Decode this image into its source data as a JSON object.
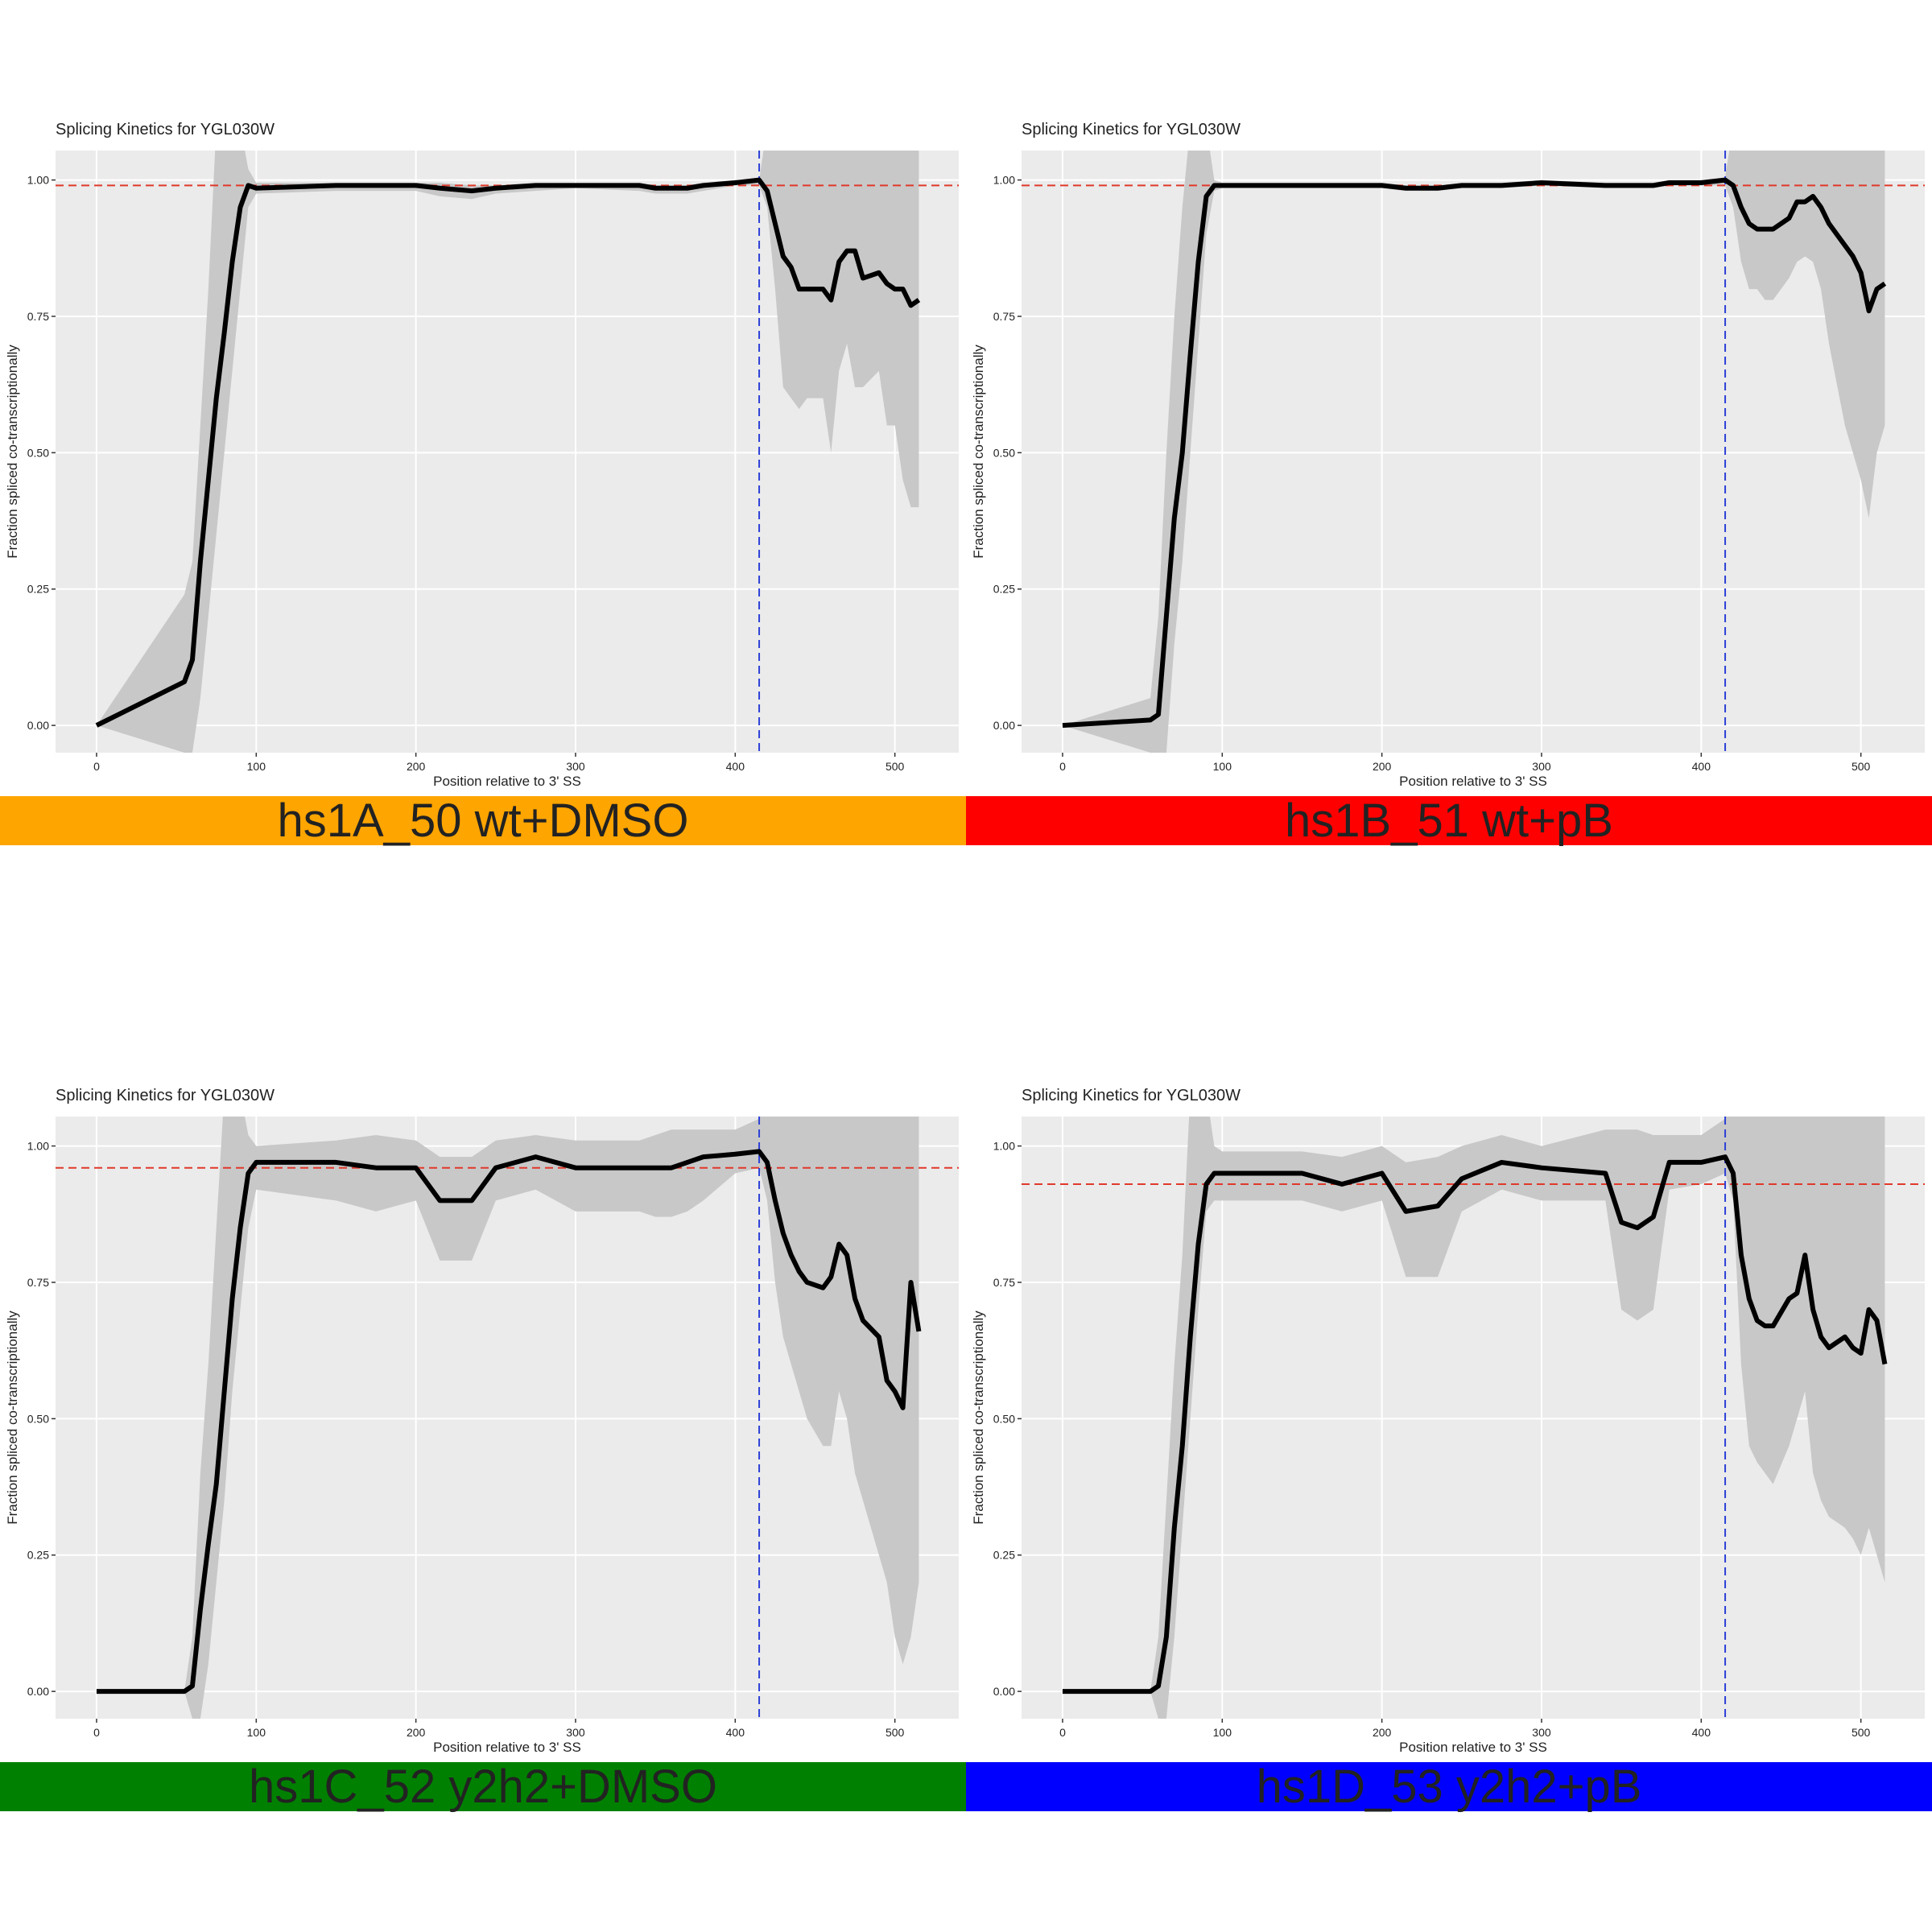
{
  "chart_data": [
    {
      "type": "line",
      "title": "Splicing Kinetics for YGL030W",
      "xlabel": "Position relative to 3' SS",
      "ylabel": "Fraction spliced co-transcriptionally",
      "banner": {
        "text": "hs1A_50 wt+DMSO",
        "color": "#ffa500"
      },
      "x": [
        0,
        55,
        60,
        65,
        70,
        75,
        80,
        85,
        90,
        95,
        100,
        150,
        175,
        200,
        215,
        235,
        250,
        275,
        300,
        340,
        350,
        360,
        370,
        380,
        400,
        415,
        420,
        425,
        430,
        435,
        440,
        445,
        455,
        460,
        465,
        470,
        475,
        480,
        490,
        495,
        500,
        505,
        510,
        515
      ],
      "series": [
        {
          "color": "#000000",
          "band_color": "#c8c8c8",
          "values": [
            0,
            0.08,
            0.12,
            0.3,
            0.45,
            0.6,
            0.72,
            0.85,
            0.95,
            0.99,
            0.985,
            0.99,
            0.99,
            0.99,
            0.985,
            0.98,
            0.985,
            0.99,
            0.99,
            0.99,
            0.985,
            0.985,
            0.985,
            0.99,
            0.995,
            1.0,
            0.98,
            0.92,
            0.86,
            0.84,
            0.8,
            0.8,
            0.8,
            0.78,
            0.85,
            0.87,
            0.87,
            0.82,
            0.83,
            0.81,
            0.8,
            0.8,
            0.77,
            0.78
          ],
          "lower": [
            0,
            -0.05,
            -0.05,
            0.05,
            0.2,
            0.35,
            0.5,
            0.65,
            0.8,
            0.95,
            0.975,
            0.98,
            0.98,
            0.98,
            0.97,
            0.965,
            0.975,
            0.98,
            0.985,
            0.98,
            0.975,
            0.975,
            0.975,
            0.98,
            0.99,
            0.99,
            0.95,
            0.8,
            0.62,
            0.6,
            0.58,
            0.6,
            0.6,
            0.5,
            0.65,
            0.7,
            0.62,
            0.62,
            0.65,
            0.55,
            0.55,
            0.45,
            0.4,
            0.4
          ],
          "upper": [
            0,
            0.24,
            0.3,
            0.55,
            0.8,
            1.1,
            1.1,
            1.1,
            1.1,
            1.02,
            0.995,
            0.995,
            0.995,
            0.995,
            0.995,
            0.99,
            0.99,
            0.995,
            0.995,
            0.995,
            0.99,
            0.99,
            0.99,
            0.995,
            1.0,
            1.0,
            1.1,
            1.1,
            1.1,
            1.1,
            1.1,
            1.1,
            1.1,
            1.1,
            1.1,
            1.1,
            1.1,
            1.1,
            1.1,
            1.1,
            1.1,
            1.1,
            1.1,
            1.1
          ]
        }
      ],
      "hline": 0.99,
      "hline_color": "#e0392b",
      "vline": 415,
      "vline_color": "#2b3fd6",
      "xlim": [
        -25.7,
        540
      ],
      "ylim": [
        -0.05,
        1.054
      ],
      "xticks": [
        0,
        100,
        200,
        300,
        400,
        500
      ],
      "yticks": [
        {
          "value": 0,
          "label": "0.00"
        },
        0.25,
        {
          "value": 0.5,
          "label": "0.50"
        },
        0.75,
        {
          "value": 1,
          "label": "1.00"
        }
      ],
      "grid": true
    },
    {
      "type": "line",
      "title": "Splicing Kinetics for YGL030W",
      "xlabel": "Position relative to 3' SS",
      "ylabel": "Fraction spliced co-transcriptionally",
      "banner": {
        "text": "hs1B_51 wt+pB",
        "color": "#ff0000"
      },
      "x": [
        0,
        55,
        60,
        65,
        70,
        75,
        80,
        85,
        90,
        95,
        100,
        150,
        175,
        200,
        215,
        235,
        250,
        275,
        300,
        340,
        350,
        360,
        370,
        380,
        400,
        415,
        420,
        425,
        430,
        435,
        440,
        445,
        455,
        460,
        465,
        470,
        475,
        480,
        490,
        495,
        500,
        505,
        510,
        515
      ],
      "series": [
        {
          "color": "#000000",
          "band_color": "#c8c8c8",
          "values": [
            0,
            0.01,
            0.02,
            0.2,
            0.38,
            0.5,
            0.68,
            0.85,
            0.97,
            0.99,
            0.99,
            0.99,
            0.99,
            0.99,
            0.985,
            0.985,
            0.99,
            0.99,
            0.995,
            0.99,
            0.99,
            0.99,
            0.99,
            0.995,
            0.995,
            1.0,
            0.99,
            0.95,
            0.92,
            0.91,
            0.91,
            0.91,
            0.93,
            0.96,
            0.96,
            0.97,
            0.95,
            0.92,
            0.88,
            0.86,
            0.83,
            0.76,
            0.8,
            0.81
          ],
          "lower": [
            0,
            -0.05,
            -0.05,
            -0.05,
            0.15,
            0.3,
            0.5,
            0.7,
            0.9,
            0.98,
            0.985,
            0.985,
            0.985,
            0.985,
            0.98,
            0.98,
            0.985,
            0.985,
            0.99,
            0.985,
            0.985,
            0.985,
            0.985,
            0.99,
            0.99,
            0.99,
            0.95,
            0.85,
            0.8,
            0.8,
            0.78,
            0.78,
            0.82,
            0.85,
            0.86,
            0.85,
            0.8,
            0.7,
            0.55,
            0.5,
            0.45,
            0.38,
            0.5,
            0.55
          ],
          "upper": [
            0,
            0.05,
            0.2,
            0.5,
            0.75,
            0.95,
            1.1,
            1.1,
            1.1,
            1.0,
            0.995,
            0.995,
            0.995,
            0.995,
            0.99,
            0.99,
            0.995,
            0.995,
            1.0,
            0.995,
            0.995,
            0.995,
            0.995,
            1.0,
            1.0,
            1.005,
            1.1,
            1.1,
            1.1,
            1.1,
            1.1,
            1.1,
            1.1,
            1.1,
            1.1,
            1.1,
            1.1,
            1.1,
            1.1,
            1.1,
            1.1,
            1.1,
            1.1,
            1.1
          ]
        }
      ],
      "hline": 0.99,
      "hline_color": "#e0392b",
      "vline": 415,
      "vline_color": "#2b3fd6",
      "xlim": [
        -25.7,
        540
      ],
      "ylim": [
        -0.05,
        1.054
      ],
      "xticks": [
        0,
        100,
        200,
        300,
        400,
        500
      ],
      "yticks": [
        {
          "value": 0,
          "label": "0.00"
        },
        0.25,
        {
          "value": 0.5,
          "label": "0.50"
        },
        0.75,
        {
          "value": 1,
          "label": "1.00"
        }
      ],
      "grid": true
    },
    {
      "type": "line",
      "title": "Splicing Kinetics for YGL030W",
      "xlabel": "Position relative to 3' SS",
      "ylabel": "Fraction spliced co-transcriptionally",
      "banner": {
        "text": "hs1C_52 y2h2+DMSO",
        "color": "#008000"
      },
      "x": [
        0,
        55,
        60,
        65,
        70,
        75,
        80,
        85,
        90,
        95,
        100,
        150,
        175,
        200,
        215,
        235,
        250,
        275,
        300,
        340,
        350,
        360,
        370,
        380,
        400,
        415,
        420,
        425,
        430,
        435,
        440,
        445,
        455,
        460,
        465,
        470,
        475,
        480,
        490,
        495,
        500,
        505,
        510,
        515
      ],
      "series": [
        {
          "color": "#000000",
          "band_color": "#c8c8c8",
          "values": [
            0,
            0,
            0.01,
            0.15,
            0.27,
            0.38,
            0.55,
            0.72,
            0.85,
            0.95,
            0.97,
            0.97,
            0.96,
            0.96,
            0.9,
            0.9,
            0.96,
            0.98,
            0.96,
            0.96,
            0.96,
            0.96,
            0.97,
            0.98,
            0.985,
            0.99,
            0.97,
            0.9,
            0.84,
            0.8,
            0.77,
            0.75,
            0.74,
            0.76,
            0.82,
            0.8,
            0.72,
            0.68,
            0.65,
            0.57,
            0.55,
            0.52,
            0.75,
            0.66
          ],
          "lower": [
            0,
            0,
            -0.05,
            -0.05,
            0.05,
            0.2,
            0.35,
            0.55,
            0.7,
            0.85,
            0.92,
            0.9,
            0.88,
            0.9,
            0.79,
            0.79,
            0.9,
            0.92,
            0.88,
            0.88,
            0.87,
            0.87,
            0.88,
            0.9,
            0.95,
            0.96,
            0.9,
            0.75,
            0.65,
            0.6,
            0.55,
            0.5,
            0.45,
            0.45,
            0.55,
            0.5,
            0.4,
            0.35,
            0.25,
            0.2,
            0.1,
            0.05,
            0.1,
            0.2
          ],
          "upper": [
            0,
            0,
            0.1,
            0.4,
            0.6,
            0.85,
            1.1,
            1.1,
            1.1,
            1.02,
            1.0,
            1.01,
            1.02,
            1.01,
            0.98,
            0.98,
            1.01,
            1.02,
            1.01,
            1.01,
            1.02,
            1.03,
            1.03,
            1.03,
            1.03,
            1.05,
            1.1,
            1.1,
            1.1,
            1.1,
            1.1,
            1.1,
            1.1,
            1.1,
            1.1,
            1.1,
            1.1,
            1.1,
            1.1,
            1.1,
            1.1,
            1.1,
            1.1,
            1.1
          ]
        }
      ],
      "hline": 0.96,
      "hline_color": "#e0392b",
      "vline": 415,
      "vline_color": "#2b3fd6",
      "xlim": [
        -25.7,
        540
      ],
      "ylim": [
        -0.05,
        1.054
      ],
      "xticks": [
        0,
        100,
        200,
        300,
        400,
        500
      ],
      "yticks": [
        {
          "value": 0,
          "label": "0.00"
        },
        0.25,
        {
          "value": 0.5,
          "label": "0.50"
        },
        0.75,
        {
          "value": 1,
          "label": "1.00"
        }
      ],
      "grid": true
    },
    {
      "type": "line",
      "title": "Splicing Kinetics for YGL030W",
      "xlabel": "Position relative to 3' SS",
      "ylabel": "Fraction spliced co-transcriptionally",
      "banner": {
        "text": "hs1D_53 y2h2+pB",
        "color": "#0000ff"
      },
      "x": [
        0,
        55,
        60,
        65,
        70,
        75,
        80,
        85,
        90,
        95,
        100,
        150,
        175,
        200,
        215,
        235,
        250,
        275,
        300,
        340,
        350,
        360,
        370,
        380,
        400,
        415,
        420,
        425,
        430,
        435,
        440,
        445,
        455,
        460,
        465,
        470,
        475,
        480,
        490,
        495,
        500,
        505,
        510,
        515
      ],
      "series": [
        {
          "color": "#000000",
          "band_color": "#c8c8c8",
          "values": [
            0,
            0,
            0.01,
            0.1,
            0.3,
            0.45,
            0.65,
            0.82,
            0.93,
            0.95,
            0.95,
            0.95,
            0.93,
            0.95,
            0.88,
            0.89,
            0.94,
            0.97,
            0.96,
            0.95,
            0.86,
            0.85,
            0.87,
            0.97,
            0.97,
            0.98,
            0.95,
            0.8,
            0.72,
            0.68,
            0.67,
            0.67,
            0.72,
            0.73,
            0.8,
            0.7,
            0.65,
            0.63,
            0.65,
            0.63,
            0.62,
            0.7,
            0.68,
            0.6
          ],
          "lower": [
            0,
            0,
            -0.05,
            -0.05,
            0.1,
            0.3,
            0.5,
            0.7,
            0.88,
            0.9,
            0.9,
            0.9,
            0.88,
            0.9,
            0.76,
            0.76,
            0.88,
            0.92,
            0.9,
            0.9,
            0.7,
            0.68,
            0.7,
            0.92,
            0.93,
            0.95,
            0.9,
            0.6,
            0.45,
            0.42,
            0.4,
            0.38,
            0.45,
            0.5,
            0.55,
            0.4,
            0.35,
            0.32,
            0.3,
            0.28,
            0.25,
            0.3,
            0.25,
            0.2
          ],
          "upper": [
            0,
            0,
            0.1,
            0.35,
            0.6,
            0.8,
            1.1,
            1.1,
            1.1,
            1.0,
            0.99,
            0.99,
            0.98,
            1.0,
            0.97,
            0.98,
            1.0,
            1.02,
            1.0,
            1.03,
            1.03,
            1.03,
            1.02,
            1.02,
            1.02,
            1.05,
            1.1,
            1.1,
            1.1,
            1.1,
            1.1,
            1.1,
            1.1,
            1.1,
            1.1,
            1.1,
            1.1,
            1.1,
            1.1,
            1.1,
            1.1,
            1.1,
            1.1,
            1.1
          ]
        }
      ],
      "hline": 0.93,
      "hline_color": "#e0392b",
      "vline": 415,
      "vline_color": "#2b3fd6",
      "xlim": [
        -25.7,
        540
      ],
      "ylim": [
        -0.05,
        1.054
      ],
      "xticks": [
        0,
        100,
        200,
        300,
        400,
        500
      ],
      "yticks": [
        {
          "value": 0,
          "label": "0.00"
        },
        0.25,
        {
          "value": 0.5,
          "label": "0.50"
        },
        0.75,
        {
          "value": 1,
          "label": "1.00"
        }
      ],
      "grid": true
    }
  ]
}
